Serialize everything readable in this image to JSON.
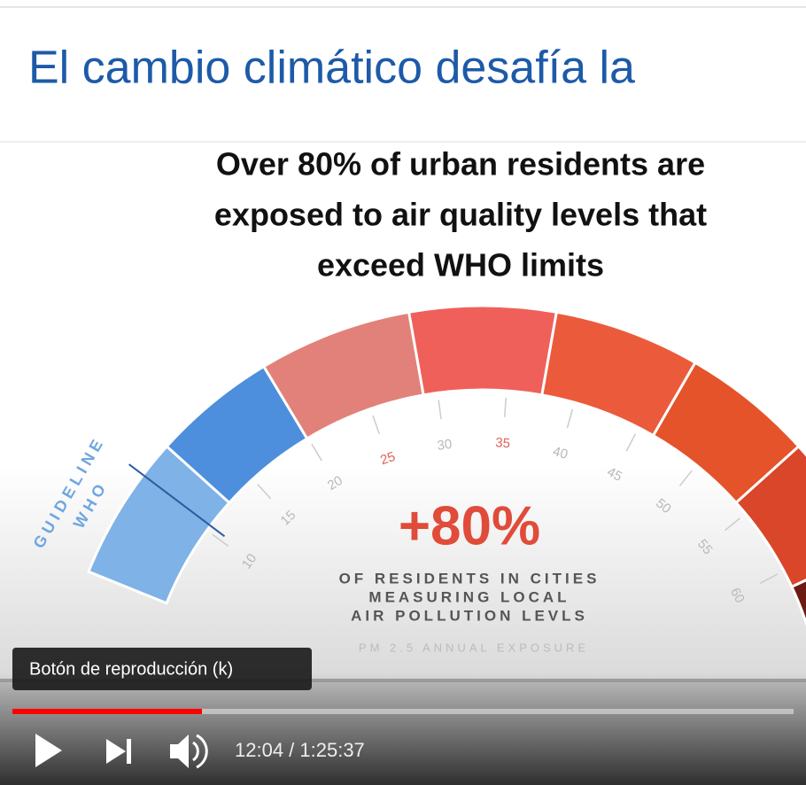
{
  "slide": {
    "title": "El cambio climático desafía la"
  },
  "infographic": {
    "headline": [
      "Over 80% of urban residents are",
      "exposed to air quality levels that",
      "exceed WHO limits"
    ],
    "who_label": [
      "WHO",
      "GUIDELINE"
    ],
    "gauge_ticks": [
      "10",
      "15",
      "20",
      "25",
      "30",
      "35",
      "40",
      "45",
      "50",
      "55",
      "60"
    ],
    "big_number": "+80%",
    "caption": [
      "OF RESIDENTS IN CITIES",
      "MEASURING LOCAL",
      "AIR POLLUTION LEVLS"
    ],
    "footnote": "PM 2.5 ANNUAL EXPOSURE"
  },
  "player": {
    "tooltip": "Botón de reproducción (k)",
    "time": "12:04 / 1:25:37"
  }
}
